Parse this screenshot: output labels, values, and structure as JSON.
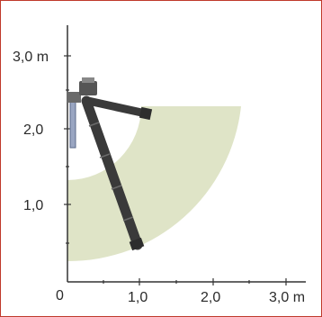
{
  "chart_data": {
    "type": "diagram",
    "x_ticks": [
      "0",
      "1,0",
      "2,0",
      "3,0 m"
    ],
    "y_ticks": [
      "1,0",
      "2,0",
      "3,0 m"
    ],
    "x_range": [
      0,
      3.2
    ],
    "y_range": [
      0,
      3.4
    ],
    "reach_zone": {
      "inner_radius_m": 1.3,
      "outer_radius_m": 2.4,
      "center_height_m": 2.45
    },
    "colors": {
      "zone": "#dfe4c7",
      "arm": "#3a3a3a",
      "axis": "#333333",
      "frame": "#c0392b"
    }
  }
}
